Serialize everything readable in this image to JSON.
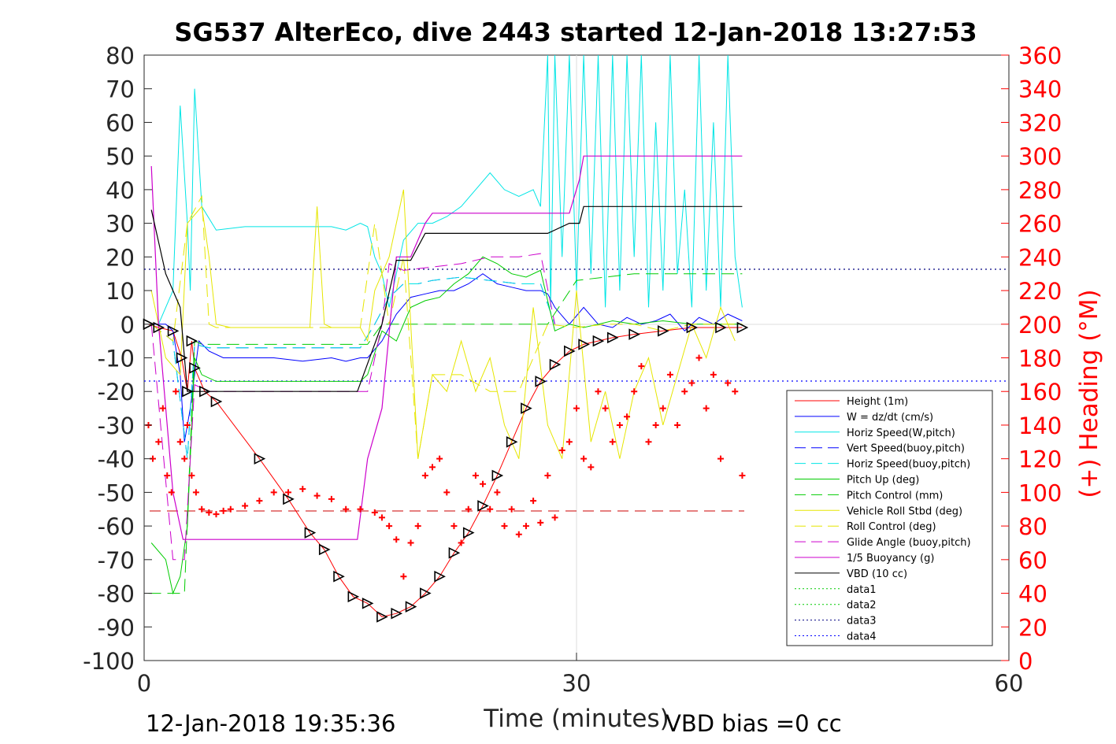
{
  "chart_data": {
    "type": "line",
    "title": "SG537 AlterEco, dive 2443 started 12-Jan-2018 13:27:53",
    "xlabel": "Time (minutes)",
    "ylabel_right": "(+) Heading (°M)",
    "footer_left": "12-Jan-2018 19:35:36",
    "footer_right": "VBD bias =0 cc",
    "xlim": [
      0,
      60
    ],
    "ylim": [
      -100,
      80
    ],
    "ylim_right": [
      0,
      360
    ],
    "xticks": [
      "0",
      "30",
      "60"
    ],
    "yticks": [
      "80",
      "70",
      "60",
      "50",
      "40",
      "30",
      "20",
      "10",
      "0",
      "-10",
      "-20",
      "-30",
      "-40",
      "-50",
      "-60",
      "-70",
      "-80",
      "-90",
      "-100"
    ],
    "yticks_right": [
      "360",
      "340",
      "320",
      "300",
      "280",
      "260",
      "240",
      "220",
      "200",
      "180",
      "160",
      "140",
      "120",
      "100",
      "80",
      "60",
      "40",
      "20",
      "0"
    ],
    "legend_position": "lower-right",
    "colors": {
      "height": "#ff0000",
      "w": "#0000ff",
      "horiz_speed": "#00e5e5",
      "vert_speed_buoy": "#0000ff",
      "horiz_speed_buoy": "#00e5e5",
      "pitch": "#00cc00",
      "pitch_control": "#00cc00",
      "roll": "#e6e600",
      "roll_control": "#e6e600",
      "glide_angle": "#cc00cc",
      "buoyancy": "#cc00cc",
      "vbd": "#000000",
      "heading": "#ff0000"
    },
    "legend": [
      {
        "label": "Height (1m)",
        "color": "#ff0000",
        "dash": "solid"
      },
      {
        "label": "W = dz/dt (cm/s)",
        "color": "#0000ff",
        "dash": "solid"
      },
      {
        "label": "Horiz Speed(W,pitch)",
        "color": "#00e5e5",
        "dash": "solid"
      },
      {
        "label": "Vert Speed(buoy,pitch)",
        "color": "#0000ff",
        "dash": "dashed"
      },
      {
        "label": "Horiz Speed(buoy,pitch)",
        "color": "#00e5e5",
        "dash": "dashed"
      },
      {
        "label": "Pitch Up (deg)",
        "color": "#00cc00",
        "dash": "solid"
      },
      {
        "label": "Pitch Control (mm)",
        "color": "#00cc00",
        "dash": "dashed"
      },
      {
        "label": "Vehicle Roll Stbd (deg)",
        "color": "#e6e600",
        "dash": "solid"
      },
      {
        "label": "Roll Control (deg)",
        "color": "#e6e600",
        "dash": "dashed"
      },
      {
        "label": "Glide Angle (buoy,pitch)",
        "color": "#cc00cc",
        "dash": "dashed"
      },
      {
        "label": "1/5 Buoyancy (g)",
        "color": "#cc00cc",
        "dash": "solid"
      },
      {
        "label": "VBD (10 cc)",
        "color": "#000000",
        "dash": "solid"
      },
      {
        "label": "data1",
        "color": "#00cc00",
        "dash": "dotted"
      },
      {
        "label": "data2",
        "color": "#00cc00",
        "dash": "dotted"
      },
      {
        "label": "data3",
        "color": "#000080",
        "dash": "dotted"
      },
      {
        "label": "data4",
        "color": "#0000ff",
        "dash": "dotted"
      }
    ],
    "series": [
      {
        "key": "height",
        "x": [
          0.3,
          1.0,
          2.0,
          2.6,
          3.0,
          3.3,
          3.5,
          4.2,
          5.0,
          8,
          10,
          11.5,
          12.5,
          13.5,
          14.5,
          15.5,
          16.5,
          17.5,
          18.5,
          19.5,
          20.5,
          21.5,
          22.5,
          23.5,
          24.5,
          25.5,
          26.5,
          27.5,
          28.5,
          29.5,
          30.5,
          31.5,
          32.5,
          34,
          36,
          38,
          40,
          41.5
        ],
        "y": [
          0,
          -1,
          -2,
          -10,
          -20,
          -5,
          -13,
          -20,
          -23,
          -40,
          -52,
          -62,
          -67,
          -75,
          -81,
          -83,
          -87,
          -86,
          -84,
          -80,
          -75,
          -68,
          -62,
          -54,
          -45,
          -35,
          -25,
          -17,
          -12,
          -8,
          -6,
          -5,
          -4,
          -3,
          -2,
          -1,
          -1,
          -1
        ]
      },
      {
        "key": "w",
        "x": [
          0.5,
          1.5,
          2.0,
          2.5,
          2.8,
          3.2,
          3.8,
          4.5,
          5.5,
          7,
          9,
          11,
          13,
          14,
          15,
          15.5,
          16.5,
          17.5,
          18.5,
          19.5,
          20.5,
          21.5,
          22.5,
          23.5,
          24.5,
          25.5,
          26.5,
          27.5,
          28,
          28.5,
          29.5,
          30.5,
          31.5,
          32.5,
          33.5,
          34.5,
          35.5,
          36.5,
          37.5,
          38.5,
          39.5,
          40.5,
          41.5
        ],
        "y": [
          0,
          0,
          -2,
          -15,
          -35,
          -25,
          -5,
          -8,
          -10,
          -10,
          -10,
          -11,
          -10,
          -11,
          -10,
          -10,
          -5,
          3,
          8,
          9,
          10,
          10,
          12,
          15,
          12,
          11,
          10,
          10,
          9,
          5,
          0,
          5,
          0,
          -1,
          2,
          0,
          1,
          3,
          -2,
          2,
          0,
          3,
          1
        ]
      },
      {
        "key": "horiz_speed",
        "x": [
          1.0,
          2.0,
          2.5,
          3.0,
          3.2,
          3.5,
          4.0,
          5.0,
          7,
          9,
          11,
          13,
          14,
          15,
          15.5,
          16,
          16.5,
          17,
          18,
          19,
          20,
          21,
          22,
          23,
          24,
          25,
          26,
          27,
          27.5,
          28,
          28.2,
          28.5,
          29,
          29.5,
          30,
          30.5,
          31,
          31.5,
          32,
          32.5,
          33,
          33.5,
          34,
          34.5,
          35,
          35.5,
          36,
          36.5,
          37,
          37.5,
          38,
          38.5,
          39,
          39.5,
          40,
          40.5,
          41,
          41.5
        ],
        "y": [
          0,
          10,
          65,
          30,
          10,
          70,
          35,
          28,
          29,
          29,
          29,
          29,
          28,
          30,
          29,
          20,
          15,
          5,
          25,
          30,
          30,
          32,
          35,
          40,
          45,
          40,
          38,
          40,
          35,
          80,
          5,
          80,
          20,
          80,
          10,
          80,
          15,
          80,
          5,
          80,
          10,
          80,
          20,
          80,
          5,
          60,
          10,
          80,
          15,
          40,
          5,
          80,
          10,
          60,
          5,
          80,
          20,
          5
        ]
      },
      {
        "key": "vert_speed_buoy",
        "x": [
          0.5,
          2.0,
          3.0,
          3.5,
          4.5,
          6,
          8,
          10,
          12,
          14,
          15,
          16,
          17,
          18,
          19,
          20,
          22,
          24,
          26,
          27.5,
          28.5
        ],
        "y": [
          0,
          -5,
          -40,
          -6,
          -7,
          -7,
          -7,
          -7,
          -7,
          -7,
          -7,
          0,
          8,
          12,
          12,
          13,
          14,
          13,
          12,
          12,
          0
        ]
      },
      {
        "key": "horiz_speed_buoy",
        "x": [
          0.5,
          2.0,
          3.0,
          3.5,
          4.5,
          6,
          8,
          10,
          12,
          14,
          15,
          16,
          17,
          18,
          19,
          20,
          22,
          24,
          26,
          27.5,
          28.5
        ],
        "y": [
          0,
          -5,
          -40,
          -6,
          -7,
          -7,
          -7,
          -7,
          -7,
          -7,
          -7,
          0,
          8,
          12,
          12,
          13,
          14,
          13,
          12,
          12,
          0
        ]
      },
      {
        "key": "pitch",
        "x": [
          0.5,
          1.5,
          2.0,
          2.5,
          3.0,
          3.5,
          4.0,
          5.0,
          7,
          9,
          11,
          13,
          15,
          15.5,
          16.5,
          17.5,
          18.5,
          19.5,
          20.5,
          21.5,
          22.5,
          23.5,
          24.5,
          25.5,
          26.5,
          27.5,
          28.5,
          29.5,
          30.5,
          31.5,
          32.5,
          34,
          36,
          38,
          40,
          41.5
        ],
        "y": [
          -65,
          -70,
          -80,
          -75,
          -60,
          -10,
          -15,
          -17,
          -17,
          -17,
          -17,
          -17,
          -17,
          -15,
          -2,
          -5,
          5,
          7,
          8,
          12,
          15,
          20,
          18,
          15,
          14,
          16,
          -2,
          0,
          -1,
          0,
          1,
          0,
          1,
          0,
          0,
          0
        ]
      },
      {
        "key": "pitch_control",
        "x": [
          0.3,
          2.8,
          3.5,
          4.0,
          6,
          10,
          14,
          15.5,
          16.5,
          17,
          18,
          20,
          22,
          24,
          26,
          28,
          30,
          32,
          34,
          36,
          38,
          40,
          41.5
        ],
        "y": [
          -80,
          -80,
          -5,
          -6,
          -6,
          -6,
          -6,
          -6,
          0,
          0,
          0,
          0,
          0,
          0,
          0,
          0,
          13,
          14,
          15,
          15,
          15,
          15,
          15
        ]
      },
      {
        "key": "roll",
        "x": [
          0.5,
          1.5,
          2.5,
          3.0,
          4.0,
          4.5,
          5.0,
          6,
          8,
          10,
          11.5,
          12,
          12.5,
          13,
          14,
          15,
          15.5,
          16,
          17,
          18,
          19,
          20,
          21,
          22,
          23,
          24,
          25,
          26,
          27,
          28,
          29,
          30,
          31,
          32,
          33,
          34,
          35,
          36,
          37,
          38,
          39,
          40,
          41
        ],
        "y": [
          10,
          -10,
          -15,
          30,
          35,
          20,
          0,
          -1,
          -1,
          -1,
          -1,
          35,
          0,
          -1,
          -1,
          -1,
          -5,
          10,
          20,
          40,
          -40,
          -15,
          -20,
          -5,
          -20,
          -10,
          -30,
          -40,
          5,
          -30,
          -40,
          10,
          -35,
          -20,
          -40,
          -20,
          -10,
          -30,
          -15,
          0,
          -10,
          5,
          -5
        ]
      },
      {
        "key": "roll_control",
        "x": [
          0.5,
          2.0,
          3.0,
          4.0,
          4.5,
          5.0,
          8,
          12,
          15,
          16,
          17,
          18,
          19,
          20,
          22,
          24,
          26,
          28,
          30,
          32,
          34,
          36,
          38,
          40,
          41.5
        ],
        "y": [
          0,
          -5,
          30,
          38,
          0,
          -1,
          -1,
          -1,
          -1,
          30,
          0,
          20,
          -40,
          -15,
          -15,
          -20,
          -20,
          0,
          -1,
          0,
          0,
          -2,
          0,
          0,
          0
        ]
      },
      {
        "key": "glide_angle",
        "x": [
          0.5,
          2.0,
          2.8,
          3.5,
          4.5,
          6,
          10,
          14,
          15.5,
          16.5,
          17,
          18,
          20,
          22,
          24,
          26,
          27.5,
          28.5
        ],
        "y": [
          0,
          -70,
          -70,
          -18,
          -20,
          -20,
          -20,
          -20,
          -20,
          0,
          18,
          16,
          17,
          18,
          20,
          20,
          21,
          0
        ]
      },
      {
        "key": "buoyancy",
        "x": [
          0.5,
          1.0,
          2.0,
          2.7,
          3.0,
          3.5,
          4.0,
          8,
          12,
          14.8,
          15.5,
          16.5,
          17.5,
          18.5,
          19.5,
          20.0,
          21,
          24,
          27.5,
          28.0,
          29.5,
          30.2,
          30.5,
          32,
          36,
          40,
          41.5
        ],
        "y": [
          47,
          0,
          -50,
          -64,
          -64,
          -64,
          -64,
          -64,
          -64,
          -64,
          -40,
          -25,
          20,
          20,
          30,
          33,
          33,
          33,
          33,
          33,
          33,
          43,
          50,
          50,
          50,
          50,
          50
        ]
      },
      {
        "key": "vbd",
        "x": [
          0.5,
          1.5,
          2.5,
          3.0,
          4.0,
          8,
          12,
          14.8,
          16.5,
          17.5,
          18.5,
          19.5,
          20.0,
          22,
          25,
          27.5,
          28.0,
          29.5,
          30.2,
          30.5,
          32,
          36,
          41.5
        ],
        "y": [
          34,
          15,
          5,
          -20,
          -20,
          -20,
          -20,
          -20,
          0,
          19,
          19,
          27,
          27,
          27,
          27,
          27,
          27,
          30,
          30,
          35,
          35,
          35,
          35
        ]
      },
      {
        "key": "heading",
        "x": [
          0.3,
          0.6,
          1.0,
          1.3,
          1.6,
          1.9,
          2.2,
          2.5,
          2.8,
          3.0,
          3.3,
          3.6,
          4.0,
          4.5,
          5.0,
          5.5,
          6,
          7,
          8,
          9,
          10,
          11,
          12,
          13,
          14,
          15,
          16,
          16.5,
          17,
          17.5,
          18,
          18.5,
          19,
          19.5,
          20,
          20.5,
          21,
          21.5,
          22,
          22.5,
          23,
          23.5,
          24,
          24.5,
          25,
          25.5,
          26,
          26.5,
          27,
          27.5,
          28,
          28.5,
          29,
          29.5,
          30,
          30.5,
          31,
          31.5,
          32,
          32.5,
          33,
          33.5,
          34,
          34.5,
          35,
          35.5,
          36,
          36.5,
          37,
          37.5,
          38,
          38.5,
          39,
          39.5,
          40,
          40.5,
          41,
          41.5
        ],
        "y": [
          140,
          120,
          130,
          150,
          110,
          100,
          160,
          130,
          120,
          140,
          110,
          100,
          90,
          88,
          87,
          89,
          90,
          92,
          95,
          100,
          100,
          102,
          98,
          96,
          90,
          90,
          88,
          85,
          80,
          72,
          50,
          70,
          80,
          110,
          115,
          120,
          100,
          80,
          70,
          90,
          110,
          105,
          90,
          100,
          80,
          90,
          75,
          80,
          95,
          82,
          110,
          85,
          125,
          130,
          150,
          120,
          115,
          160,
          150,
          130,
          140,
          145,
          160,
          175,
          130,
          140,
          150,
          170,
          140,
          160,
          165,
          180,
          150,
          170,
          120,
          165,
          160,
          110
        ]
      }
    ]
  }
}
